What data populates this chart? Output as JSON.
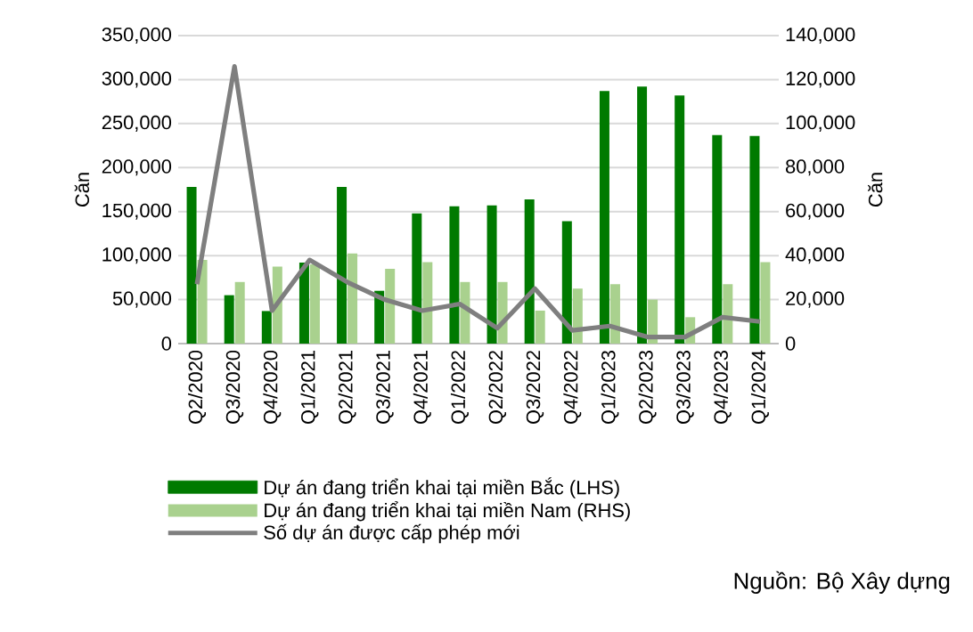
{
  "chart_data": {
    "type": "bar",
    "ylabel": "Căn",
    "y2label": "Căn",
    "categories": [
      "Q2/2020",
      "Q3/2020",
      "Q4/2020",
      "Q1/2021",
      "Q2/2021",
      "Q3/2021",
      "Q4/2021",
      "Q1/2022",
      "Q2/2022",
      "Q3/2022",
      "Q4/2022",
      "Q1/2023",
      "Q2/2023",
      "Q3/2023",
      "Q4/2023",
      "Q1/2024"
    ],
    "series": [
      {
        "name": "Dự án đang triển khai tại miền Bắc (LHS)",
        "color": "#007a00",
        "values": [
          178000,
          55000,
          37000,
          92000,
          178000,
          60000,
          148000,
          156000,
          157000,
          164000,
          139000,
          287000,
          292000,
          282000,
          237000,
          236000
        ]
      },
      {
        "name": "Dự án đang triển khai tại miền Nam (RHS)",
        "axis": "y2",
        "color": "#a9d18e",
        "values": [
          38000,
          28000,
          35000,
          36000,
          41000,
          34000,
          37000,
          28000,
          28000,
          15000,
          25000,
          27000,
          20000,
          12000,
          27000,
          37000
        ]
      },
      {
        "name": "Số dự án được cấp phép mới",
        "type": "line",
        "axis": "y2",
        "color": "#7f7f7f",
        "values": [
          27000,
          126000,
          15000,
          38000,
          28000,
          20000,
          15000,
          18000,
          7000,
          25000,
          6000,
          8000,
          3000,
          3000,
          12000,
          10000
        ]
      }
    ],
    "ylim": [
      0,
      350000
    ],
    "yticks": [
      {
        "value": 0,
        "label": "0"
      },
      {
        "value": 50000,
        "label": "50,000"
      },
      {
        "value": 100000,
        "label": "100,000"
      },
      {
        "value": 150000,
        "label": "150,000"
      },
      {
        "value": 200000,
        "label": "200,000"
      },
      {
        "value": 250000,
        "label": "250,000"
      },
      {
        "value": 300000,
        "label": "300,000"
      },
      {
        "value": 350000,
        "label": "350,000"
      }
    ],
    "y2lim": [
      0,
      140000
    ],
    "y2ticks": [
      {
        "value": 0,
        "label": "0"
      },
      {
        "value": 20000,
        "label": "20,000"
      },
      {
        "value": 40000,
        "label": "40,000"
      },
      {
        "value": 60000,
        "label": "60,000"
      },
      {
        "value": 80000,
        "label": "80,000"
      },
      {
        "value": 100000,
        "label": "100,000"
      },
      {
        "value": 120000,
        "label": "120,000"
      },
      {
        "value": 140000,
        "label": "140,000"
      }
    ],
    "grid": "y",
    "legend": "bottom",
    "annotations": [
      "Nguồn: Bộ Xây dựng"
    ]
  }
}
